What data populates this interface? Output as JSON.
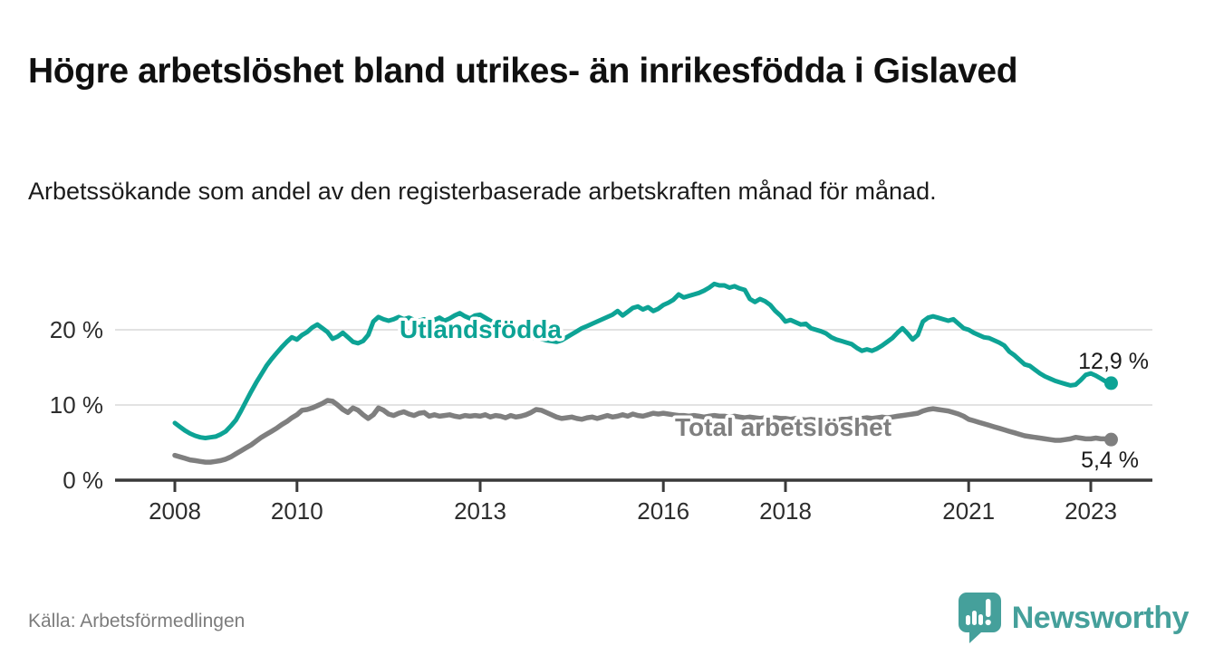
{
  "header": {
    "title": "Högre arbetslöshet bland utrikes- än inrikesfödda i Gislaved",
    "subtitle": "Arbetssökande som andel av den registerbaserade arbetskraften månad för månad."
  },
  "footer": {
    "source": "Källa: Arbetsförmedlingen",
    "logo_text": "Newsworthy"
  },
  "colors": {
    "accent_teal": "#0da395",
    "series_gray": "#7f7f7f",
    "logo_teal": "#45a09b",
    "axis": "#3a3a3a",
    "grid": "#d8d8d8",
    "label_dark": "#1a1a1a",
    "muted_gray": "#7c7c7c"
  },
  "chart_data": {
    "type": "line",
    "unit": "%",
    "frequency": "monthly",
    "x_start": "2008-01",
    "x_end": "2023-05",
    "grid": "horizontal",
    "legend_position": "inline-labels",
    "ylim": [
      0,
      28
    ],
    "x_ticks": [
      2008,
      2010,
      2013,
      2016,
      2018,
      2021,
      2023
    ],
    "y_ticks": [
      {
        "value": 0,
        "label": "0 %"
      },
      {
        "value": 10,
        "label": "10 %"
      },
      {
        "value": 20,
        "label": "20 %"
      }
    ],
    "series": [
      {
        "name": "Utlandsfödda",
        "color": "#0da395",
        "end_label": "12,9 %",
        "end_value": 12.9,
        "values": [
          7.6,
          7.1,
          6.6,
          6.2,
          5.9,
          5.7,
          5.6,
          5.7,
          5.8,
          6.1,
          6.5,
          7.2,
          8.0,
          9.2,
          10.5,
          11.8,
          13.0,
          14.1,
          15.2,
          16.1,
          16.9,
          17.7,
          18.4,
          19.0,
          18.7,
          19.3,
          19.7,
          20.3,
          20.7,
          20.2,
          19.7,
          18.8,
          19.1,
          19.6,
          19.0,
          18.4,
          18.2,
          18.5,
          19.3,
          21.1,
          21.7,
          21.4,
          21.2,
          21.4,
          21.7,
          21.4,
          21.6,
          21.3,
          21.2,
          21.4,
          21.0,
          21.3,
          21.6,
          21.2,
          21.5,
          21.9,
          22.2,
          21.8,
          21.5,
          21.9,
          22.0,
          21.6,
          21.2,
          20.8,
          20.5,
          20.2,
          19.9,
          19.6,
          19.4,
          19.2,
          19.0,
          18.9,
          18.8,
          18.6,
          18.5,
          18.4,
          18.6,
          19.0,
          19.4,
          19.8,
          20.2,
          20.5,
          20.8,
          21.1,
          21.4,
          21.7,
          22.0,
          22.5,
          21.9,
          22.4,
          22.9,
          23.1,
          22.7,
          23.0,
          22.5,
          22.8,
          23.3,
          23.6,
          24.0,
          24.7,
          24.3,
          24.5,
          24.7,
          24.9,
          25.2,
          25.6,
          26.1,
          25.9,
          25.9,
          25.6,
          25.8,
          25.5,
          25.3,
          24.1,
          23.7,
          24.1,
          23.8,
          23.3,
          22.5,
          21.9,
          21.1,
          21.3,
          21.0,
          20.7,
          20.8,
          20.2,
          20.0,
          19.8,
          19.5,
          19.0,
          18.7,
          18.5,
          18.3,
          18.1,
          17.6,
          17.2,
          17.4,
          17.2,
          17.5,
          17.9,
          18.4,
          18.9,
          19.6,
          20.2,
          19.5,
          18.7,
          19.3,
          21.1,
          21.6,
          21.8,
          21.6,
          21.4,
          21.2,
          21.4,
          20.8,
          20.2,
          20.0,
          19.6,
          19.3,
          19.0,
          18.9,
          18.6,
          18.3,
          17.9,
          17.1,
          16.6,
          16.0,
          15.4,
          15.2,
          14.7,
          14.2,
          13.8,
          13.5,
          13.2,
          13.0,
          12.8,
          12.6,
          12.7,
          13.3,
          14.0,
          14.2,
          13.9,
          13.5,
          13.1,
          12.9
        ]
      },
      {
        "name": "Total arbetslöshet",
        "color": "#7f7f7f",
        "end_label": "5,4 %",
        "end_value": 5.4,
        "values": [
          3.3,
          3.1,
          2.9,
          2.7,
          2.6,
          2.5,
          2.4,
          2.4,
          2.5,
          2.6,
          2.8,
          3.1,
          3.5,
          3.9,
          4.3,
          4.7,
          5.2,
          5.7,
          6.1,
          6.5,
          6.9,
          7.4,
          7.8,
          8.3,
          8.7,
          9.3,
          9.4,
          9.6,
          9.9,
          10.2,
          10.6,
          10.5,
          10.0,
          9.4,
          9.0,
          9.6,
          9.3,
          8.7,
          8.2,
          8.7,
          9.6,
          9.3,
          8.8,
          8.6,
          8.9,
          9.1,
          8.8,
          8.6,
          8.9,
          9.0,
          8.5,
          8.7,
          8.5,
          8.6,
          8.7,
          8.5,
          8.4,
          8.6,
          8.5,
          8.6,
          8.5,
          8.7,
          8.4,
          8.6,
          8.5,
          8.3,
          8.6,
          8.4,
          8.5,
          8.7,
          9.0,
          9.4,
          9.3,
          9.0,
          8.7,
          8.4,
          8.2,
          8.3,
          8.4,
          8.2,
          8.1,
          8.3,
          8.4,
          8.2,
          8.4,
          8.6,
          8.4,
          8.5,
          8.7,
          8.5,
          8.8,
          8.6,
          8.5,
          8.7,
          8.9,
          8.8,
          8.9,
          8.8,
          8.7,
          8.6,
          8.6,
          8.5,
          8.6,
          8.5,
          8.4,
          8.5,
          8.6,
          8.5,
          8.5,
          8.4,
          8.5,
          8.4,
          8.3,
          8.4,
          8.3,
          8.2,
          8.3,
          8.2,
          8.3,
          8.2,
          8.2,
          8.1,
          8.2,
          8.1,
          8.0,
          8.1,
          8.0,
          7.9,
          8.0,
          8.1,
          8.0,
          8.1,
          8.1,
          8.2,
          8.1,
          8.2,
          8.3,
          8.2,
          8.3,
          8.4,
          8.3,
          8.4,
          8.5,
          8.6,
          8.7,
          8.8,
          8.9,
          9.2,
          9.4,
          9.5,
          9.4,
          9.3,
          9.2,
          9.0,
          8.8,
          8.5,
          8.1,
          7.9,
          7.7,
          7.5,
          7.3,
          7.1,
          6.9,
          6.7,
          6.5,
          6.3,
          6.1,
          5.9,
          5.8,
          5.7,
          5.6,
          5.5,
          5.4,
          5.3,
          5.3,
          5.4,
          5.5,
          5.7,
          5.6,
          5.5,
          5.5,
          5.6,
          5.5,
          5.5,
          5.4
        ]
      }
    ]
  }
}
